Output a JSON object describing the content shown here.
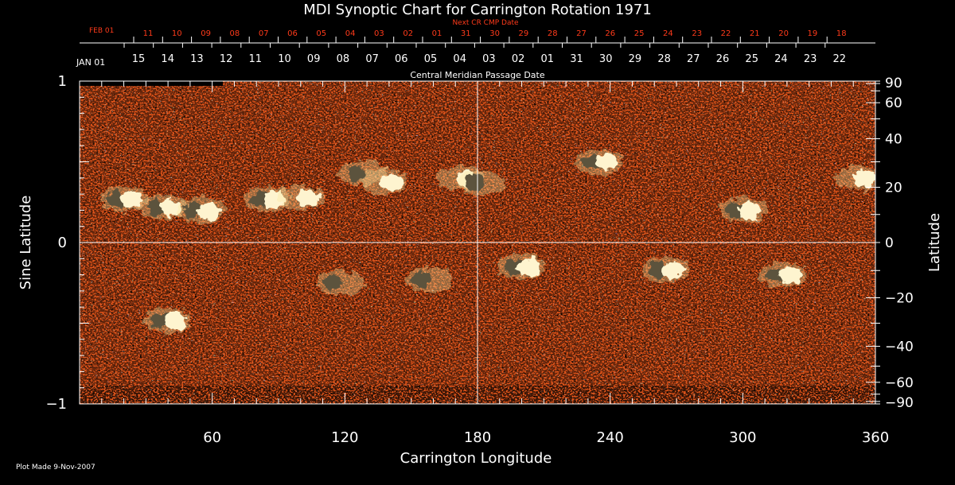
{
  "chart_data": {
    "type": "heatmap",
    "title": "MDI Synoptic Chart for Carrington Rotation 1971",
    "xlabel": "Carrington Longitude",
    "ylabel_left": "Sine Latitude",
    "ylabel_right": "Latitude",
    "xlim": [
      0,
      360
    ],
    "ylim": [
      -1,
      1
    ],
    "x_ticks": [
      60,
      120,
      180,
      240,
      300,
      360
    ],
    "y_ticks_left": [
      {
        "value": 1,
        "label": "1"
      },
      {
        "value": 0,
        "label": "0"
      },
      {
        "value": -1,
        "label": "−1"
      }
    ],
    "y_ticks_right": [
      "90",
      "60",
      "40",
      "20",
      "0",
      "−20",
      "−40",
      "−60",
      "−90"
    ],
    "cmp_axis": {
      "label": "Central Meridian Passage Date",
      "start_label": "JAN 01",
      "dates": [
        "15",
        "14",
        "13",
        "12",
        "11",
        "10",
        "09",
        "08",
        "07",
        "06",
        "05",
        "04",
        "03",
        "02",
        "01",
        "31",
        "30",
        "29",
        "28",
        "27",
        "26",
        "25",
        "24",
        "23",
        "22"
      ]
    },
    "next_cr_axis": {
      "label": "Next CR CMP Date",
      "start_label": "FEB 01",
      "dates": [
        "11",
        "10",
        "09",
        "08",
        "07",
        "06",
        "05",
        "04",
        "03",
        "02",
        "01",
        "31",
        "30",
        "29",
        "28",
        "27",
        "26",
        "25",
        "24",
        "23",
        "22",
        "21",
        "20",
        "19",
        "18"
      ]
    },
    "grid": "crosshair at 180 longitude and 0 latitude",
    "colors": {
      "background": "#000000",
      "axes": "#ffffff",
      "next_cr": "#ff3a1a",
      "map_base": "#e85a12"
    },
    "active_regions": [
      {
        "lon": 20,
        "sinlat": 0.27,
        "polarity": "mixed"
      },
      {
        "lon": 38,
        "sinlat": 0.22,
        "polarity": "mixed"
      },
      {
        "lon": 55,
        "sinlat": 0.2,
        "polarity": "mixed"
      },
      {
        "lon": 85,
        "sinlat": 0.27,
        "polarity": "mixed"
      },
      {
        "lon": 100,
        "sinlat": 0.28,
        "polarity": "positive"
      },
      {
        "lon": 128,
        "sinlat": 0.43,
        "polarity": "negative"
      },
      {
        "lon": 138,
        "sinlat": 0.38,
        "polarity": "positive"
      },
      {
        "lon": 172,
        "sinlat": 0.4,
        "polarity": "positive"
      },
      {
        "lon": 182,
        "sinlat": 0.37,
        "polarity": "negative"
      },
      {
        "lon": 235,
        "sinlat": 0.5,
        "polarity": "mixed"
      },
      {
        "lon": 300,
        "sinlat": 0.2,
        "polarity": "mixed"
      },
      {
        "lon": 352,
        "sinlat": 0.4,
        "polarity": "positive"
      },
      {
        "lon": 200,
        "sinlat": -0.15,
        "polarity": "mixed"
      },
      {
        "lon": 265,
        "sinlat": -0.17,
        "polarity": "mixed"
      },
      {
        "lon": 318,
        "sinlat": -0.2,
        "polarity": "mixed"
      },
      {
        "lon": 40,
        "sinlat": -0.48,
        "polarity": "mixed"
      },
      {
        "lon": 118,
        "sinlat": -0.25,
        "polarity": "negative"
      },
      {
        "lon": 158,
        "sinlat": -0.23,
        "polarity": "negative"
      }
    ]
  },
  "footer": {
    "plot_made": "Plot Made  9-Nov-2007"
  }
}
